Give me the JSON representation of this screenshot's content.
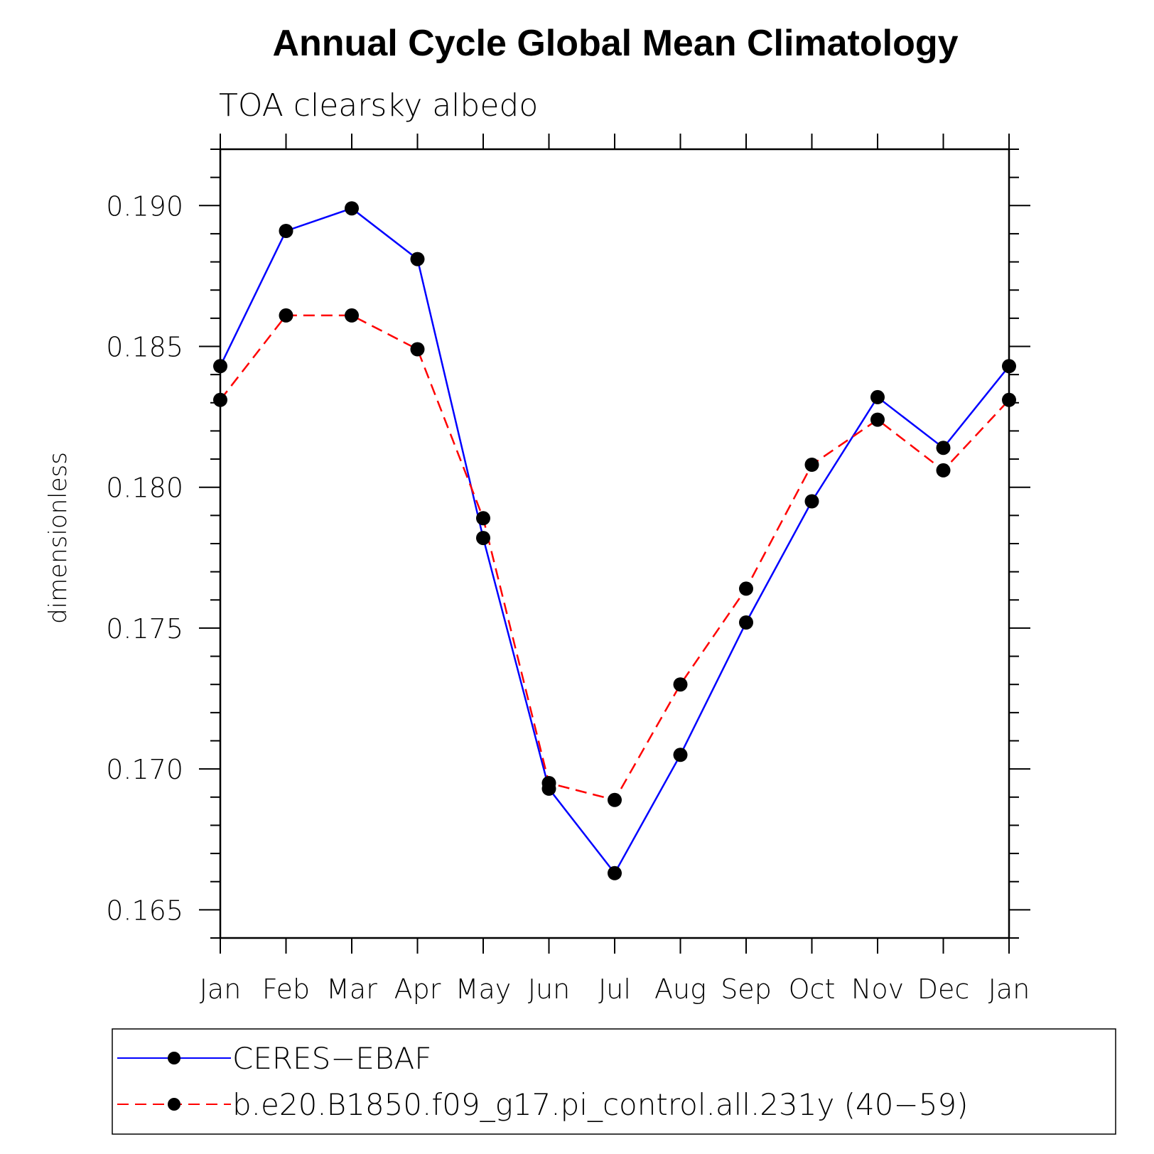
{
  "chart_data": {
    "type": "line",
    "title": "Annual Cycle Global Mean Climatology",
    "subtitle": "TOA clearsky albedo",
    "ylabel": "dimensionless",
    "xlabel": "",
    "categories": [
      "Jan",
      "Feb",
      "Mar",
      "Apr",
      "May",
      "Jun",
      "Jul",
      "Aug",
      "Sep",
      "Oct",
      "Nov",
      "Dec",
      "Jan"
    ],
    "ylim": [
      0.164,
      0.192
    ],
    "yticks": [
      0.165,
      0.17,
      0.175,
      0.18,
      0.185,
      0.19
    ],
    "ytick_labels": [
      "0.165",
      "0.170",
      "0.175",
      "0.180",
      "0.185",
      "0.190"
    ],
    "series": [
      {
        "name": "CERES−EBAF",
        "color": "#0000ff",
        "style": "solid",
        "values": [
          0.1843,
          0.1891,
          0.1899,
          0.1881,
          0.1782,
          0.1693,
          0.1663,
          0.1705,
          0.1752,
          0.1795,
          0.1832,
          0.1814,
          0.1843
        ]
      },
      {
        "name": "b.e20.B1850.f09_g17.pi_control.all.231y (40−59)",
        "color": "#ff0000",
        "style": "dashed",
        "values": [
          0.1831,
          0.1861,
          0.1861,
          0.1849,
          0.1789,
          0.1695,
          0.1689,
          0.173,
          0.1764,
          0.1808,
          0.1824,
          0.1806,
          0.1831
        ]
      }
    ],
    "grid": false,
    "legend_position": "bottom",
    "marker": "filled-circle",
    "marker_color": "#000000"
  }
}
